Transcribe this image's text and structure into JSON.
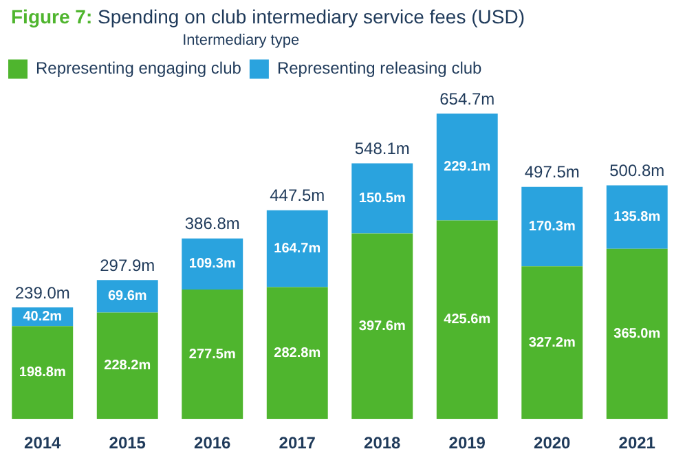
{
  "chart_data": {
    "type": "bar",
    "title": "Figure 7: Spending on club intermediary service fees (USD)",
    "legend_title": "Intermediary type",
    "categories": [
      "2014",
      "2015",
      "2016",
      "2017",
      "2018",
      "2019",
      "2020",
      "2021"
    ],
    "stacked": true,
    "legend": "top left",
    "series": [
      {
        "name": "Representing engaging club",
        "color": "#4fb52e",
        "values": [
          198.8,
          228.2,
          277.5,
          282.8,
          397.6,
          425.6,
          327.2,
          365.0
        ],
        "value_labels": [
          "198.8m",
          "228.2m",
          "277.5m",
          "282.8m",
          "397.6m",
          "425.6m",
          "327.2m",
          "365.0m"
        ]
      },
      {
        "name": "Representing releasing club",
        "color": "#2aa3de",
        "values": [
          40.2,
          69.6,
          109.3,
          164.7,
          150.5,
          229.1,
          170.3,
          135.8
        ],
        "value_labels": [
          "40.2m",
          "69.6m",
          "109.3m",
          "164.7m",
          "150.5m",
          "229.1m",
          "170.3m",
          "135.8m"
        ]
      }
    ],
    "totals": [
      "239.0m",
      "297.9m",
      "386.8m",
      "447.5m",
      "548.1m",
      "654.7m",
      "497.5m",
      "500.8m"
    ]
  }
}
